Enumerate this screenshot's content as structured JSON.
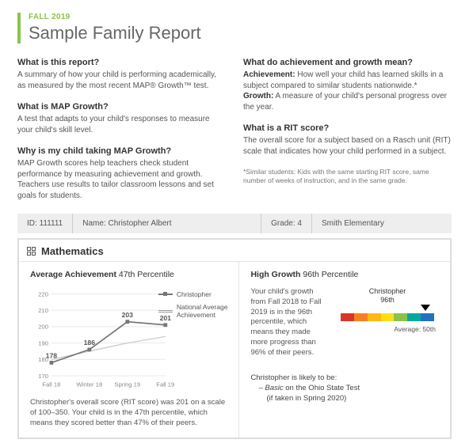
{
  "header": {
    "term": "FALL 2019",
    "title": "Sample Family Report"
  },
  "left": {
    "q1": "What is this report?",
    "a1": "A summary of how your child is performing academically, as measured by the most recent MAP® Growth™ test.",
    "q2": "What is MAP Growth?",
    "a2": "A test that adapts to your child's responses to measure your child's skill level.",
    "q3": "Why is my child taking MAP Growth?",
    "a3": "MAP Growth scores help teachers check student performance by measuring achievement and growth. Teachers use results to tailor classroom lessons and set goals for students."
  },
  "right": {
    "q1": "What do achievement and growth mean?",
    "a1_ach_label": "Achievement:",
    "a1_ach": " How well your child has learned skills in a subject compared to similar students nationwide.*",
    "a1_gro_label": "Growth:",
    "a1_gro": " A measure of your child's personal progress over the year.",
    "q2": "What is a RIT score?",
    "a2": "The overall score for a subject based on a Rasch unit (RIT) scale that indicates how your child performed in a subject.",
    "footnote": "*Similar students: Kids with the same starting RIT score, same number of weeks of instruction, and in the same grade."
  },
  "info": {
    "id_label": "ID: ",
    "id": "111111",
    "name_label": "Name: ",
    "name": "Christopher Albert",
    "grade_label": "Grade: ",
    "grade": "4",
    "school": "Smith Elementary"
  },
  "subject": {
    "name": "Mathematics",
    "ach_title_b": "Average Achievement",
    "ach_title_rest": " 47th Percentile",
    "growth_title_b": "High Growth",
    "growth_title_rest": " 96th Percentile",
    "ach_blurb": "Christopher's overall score (RIT score) was 201 on a scale of 100–350. Your child is in the 47th percentile, which means they scored better than 47% of their peers.",
    "growth_blurb": "Your child's growth from Fall 2018 to Fall 2019 is in the 96th percentile, which means they made more progress than 96% of their peers.",
    "likely_intro": "Christopher is likely to be:",
    "likely_item1": "– Basic on the Ohio State Test",
    "likely_item1_sub": "(if taken in Spring 2020)",
    "chart": {
      "type": "line",
      "ylim": [
        170,
        220
      ],
      "ytick_step": 10,
      "yticks": [
        "170",
        "180",
        "190",
        "200",
        "210",
        "220"
      ],
      "xlabels": [
        "Fall 18",
        "Winter 18",
        "Spring 19",
        "Fall 19"
      ],
      "student_series": [
        178,
        186,
        203,
        201
      ],
      "national_series": [
        180,
        185,
        190,
        194
      ],
      "student_color": "#777777",
      "national_color": "#aaaaaa",
      "grid_color": "#e8e8e8",
      "label_fontsize": 8,
      "value_fontsize": 9
    },
    "legend": {
      "student": "Christopher",
      "national1": "National Average",
      "national2": "Achievement"
    },
    "rainbow": {
      "top_label1": "Christopher",
      "top_label2": "96th",
      "avg_label": "Average: 50th",
      "colors": [
        "#d9352b",
        "#f58220",
        "#fdb913",
        "#ffde17",
        "#8bc34a",
        "#00a99d",
        "#1e73be"
      ]
    }
  }
}
